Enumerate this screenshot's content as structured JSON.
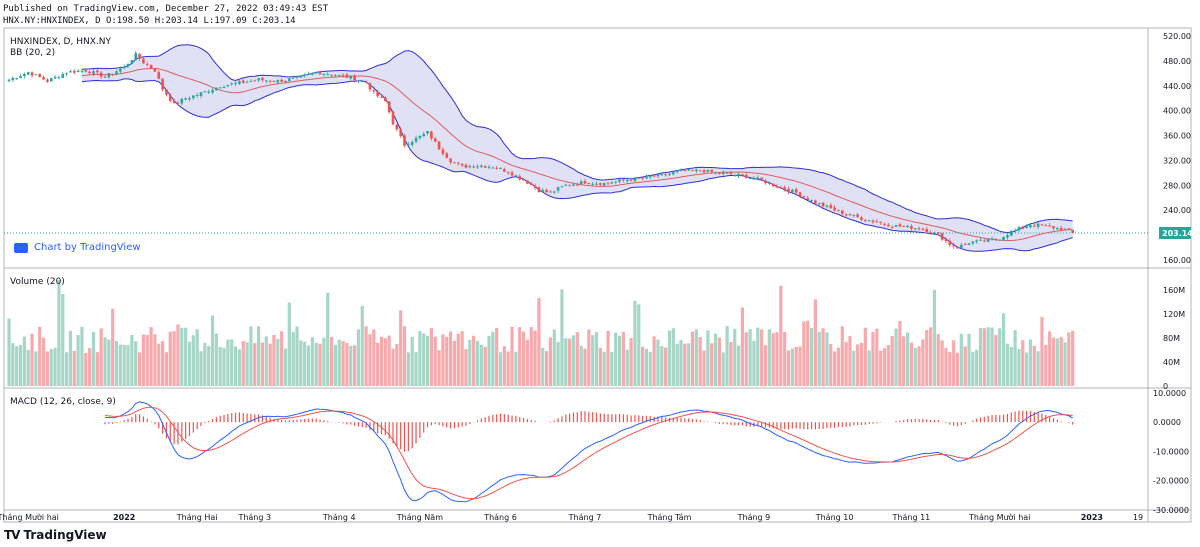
{
  "header": {
    "published": "Published on TradingView.com, December 27, 2022 03:49:43 EST",
    "ohlc": "HNX.NY:HNXINDEX, D O:198.50 H:203.14 L:197.09 C:203.14"
  },
  "footer": {
    "brand": "TradingView",
    "logo": "TV"
  },
  "link": {
    "label": "Chart by TradingView"
  },
  "colors": {
    "up": "#26a69a",
    "down": "#ef5350",
    "up_vol": "#a5d6c6",
    "down_vol": "#f7a9ad",
    "band": "#2f2fd4",
    "band_fill": "#c8c8ec",
    "basis": "#e05c5c",
    "macd": "#2962ff",
    "signal": "#ef5350",
    "last_price": "#26a69a"
  },
  "chart_data": [
    {
      "type": "candlestick",
      "title": "HNXINDEX, D, HNX.NY",
      "indicator": "BB (20, 2)",
      "last_price": 203.14,
      "ylim": [
        150,
        530
      ],
      "yticks": [
        160,
        200,
        240,
        280,
        320,
        360,
        400,
        440,
        480,
        520
      ],
      "ytick_labels": [
        "160.00",
        "200.00",
        "240.00",
        "280.00",
        "320.00",
        "360.00",
        "400.00",
        "440.00",
        "480.00",
        "520.00"
      ],
      "xticks": [
        {
          "label": "Tháng Mười hai",
          "i": 5
        },
        {
          "label": "2022",
          "i": 30
        },
        {
          "label": "Tháng Hai",
          "i": 49
        },
        {
          "label": "Tháng 3",
          "i": 64
        },
        {
          "label": "Tháng 4",
          "i": 86
        },
        {
          "label": "Tháng Năm",
          "i": 107
        },
        {
          "label": "Tháng 6",
          "i": 128
        },
        {
          "label": "Tháng 7",
          "i": 150
        },
        {
          "label": "Tháng Tám",
          "i": 172
        },
        {
          "label": "Tháng 9",
          "i": 194
        },
        {
          "label": "Tháng 10",
          "i": 215
        },
        {
          "label": "Tháng 11",
          "i": 235
        },
        {
          "label": "Tháng Mười hai",
          "i": 258
        },
        {
          "label": "2023",
          "i": 282
        },
        {
          "label": "19",
          "i": 294
        }
      ],
      "series": [
        {
          "name": "HNXINDEX",
          "keyframes": [
            [
              0,
              450
            ],
            [
              5,
              462
            ],
            [
              10,
              448
            ],
            [
              15,
              462
            ],
            [
              20,
              465
            ],
            [
              25,
              455
            ],
            [
              30,
              470
            ],
            [
              33,
              490
            ],
            [
              35,
              478
            ],
            [
              38,
              465
            ],
            [
              40,
              435
            ],
            [
              43,
              410
            ],
            [
              46,
              420
            ],
            [
              50,
              428
            ],
            [
              55,
              440
            ],
            [
              60,
              445
            ],
            [
              65,
              450
            ],
            [
              70,
              448
            ],
            [
              75,
              452
            ],
            [
              80,
              462
            ],
            [
              85,
              458
            ],
            [
              90,
              452
            ],
            [
              93,
              445
            ],
            [
              95,
              428
            ],
            [
              98,
              415
            ],
            [
              100,
              380
            ],
            [
              103,
              345
            ],
            [
              106,
              355
            ],
            [
              109,
              365
            ],
            [
              112,
              340
            ],
            [
              115,
              320
            ],
            [
              118,
              310
            ],
            [
              122,
              312
            ],
            [
              126,
              310
            ],
            [
              130,
              302
            ],
            [
              135,
              285
            ],
            [
              138,
              272
            ],
            [
              141,
              268
            ],
            [
              145,
              280
            ],
            [
              150,
              285
            ],
            [
              155,
              283
            ],
            [
              160,
              288
            ],
            [
              165,
              292
            ],
            [
              170,
              296
            ],
            [
              175,
              302
            ],
            [
              180,
              304
            ],
            [
              184,
              300
            ],
            [
              188,
              298
            ],
            [
              192,
              294
            ],
            [
              196,
              288
            ],
            [
              200,
              278
            ],
            [
              205,
              268
            ],
            [
              210,
              252
            ],
            [
              215,
              240
            ],
            [
              220,
              230
            ],
            [
              225,
              222
            ],
            [
              230,
              215
            ],
            [
              235,
              212
            ],
            [
              238,
              210
            ],
            [
              242,
              200
            ],
            [
              245,
              185
            ],
            [
              247,
              180
            ],
            [
              250,
              188
            ],
            [
              254,
              190
            ],
            [
              258,
              195
            ],
            [
              261,
              205
            ],
            [
              264,
              212
            ],
            [
              266,
              217
            ],
            [
              269,
              215
            ],
            [
              272,
              212
            ],
            [
              275,
              208
            ],
            [
              277,
              203
            ]
          ]
        },
        {
          "name": "Volume (20)",
          "yticks": [
            0,
            40,
            80,
            120,
            160
          ],
          "ytick_labels": [
            "0",
            "40M",
            "80M",
            "120M",
            "160M"
          ],
          "ylim": [
            0,
            190
          ]
        },
        {
          "name": "MACD (12, 26, close, 9)",
          "yticks": [
            10,
            0,
            -10,
            -20,
            -30
          ],
          "ytick_labels": [
            "10.0000",
            "0.0000",
            "-10.0000",
            "-20.0000",
            "-30.0000"
          ],
          "ylim": [
            -30,
            11
          ]
        }
      ]
    }
  ]
}
